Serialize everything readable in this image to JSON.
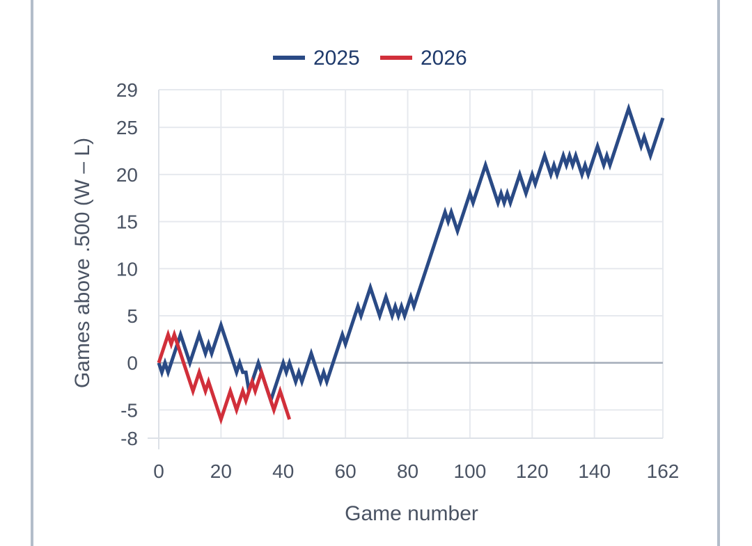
{
  "chart_data": {
    "type": "line",
    "title": "",
    "xlabel": "Game number",
    "ylabel": "Games above .500 (W – L)",
    "xlim": [
      0,
      162
    ],
    "ylim": [
      -8,
      29
    ],
    "xticks": [
      0,
      20,
      40,
      60,
      80,
      100,
      120,
      140,
      162
    ],
    "yticks": [
      -8,
      -5,
      0,
      5,
      10,
      15,
      20,
      25,
      29
    ],
    "grid": true,
    "legend_position": "top-center",
    "series": [
      {
        "name": "2025",
        "color": "#2a4a85",
        "x": [
          0,
          1,
          2,
          3,
          4,
          5,
          6,
          7,
          8,
          9,
          10,
          11,
          12,
          13,
          14,
          15,
          16,
          17,
          18,
          19,
          20,
          21,
          22,
          23,
          24,
          25,
          26,
          27,
          28,
          29,
          30,
          31,
          32,
          33,
          34,
          35,
          36,
          37,
          38,
          39,
          40,
          41,
          42,
          43,
          44,
          45,
          46,
          47,
          48,
          49,
          50,
          51,
          52,
          53,
          54,
          55,
          56,
          57,
          58,
          59,
          60,
          61,
          62,
          63,
          64,
          65,
          66,
          67,
          68,
          69,
          70,
          71,
          72,
          73,
          74,
          75,
          76,
          77,
          78,
          79,
          80,
          81,
          82,
          83,
          84,
          85,
          86,
          87,
          88,
          89,
          90,
          91,
          92,
          93,
          94,
          95,
          96,
          97,
          98,
          99,
          100,
          101,
          102,
          103,
          104,
          105,
          106,
          107,
          108,
          109,
          110,
          111,
          112,
          113,
          114,
          115,
          116,
          117,
          118,
          119,
          120,
          121,
          122,
          123,
          124,
          125,
          126,
          127,
          128,
          129,
          130,
          131,
          132,
          133,
          134,
          135,
          136,
          137,
          138,
          139,
          140,
          141,
          142,
          143,
          144,
          145,
          146,
          147,
          148,
          149,
          150,
          151,
          152,
          153,
          154,
          155,
          156,
          157,
          158,
          159,
          160,
          161,
          162
        ],
        "y": [
          0,
          -1,
          0,
          -1,
          0,
          1,
          2,
          3,
          2,
          1,
          0,
          1,
          2,
          3,
          2,
          1,
          2,
          1,
          2,
          3,
          4,
          3,
          2,
          1,
          0,
          -1,
          0,
          -1,
          -1,
          -3,
          -2,
          -1,
          0,
          -1,
          -2,
          -3,
          -4,
          -3,
          -2,
          -1,
          0,
          -1,
          0,
          -1,
          -2,
          -1,
          -2,
          -1,
          0,
          1,
          0,
          -1,
          -2,
          -1,
          -2,
          -1,
          0,
          1,
          2,
          3,
          2,
          3,
          4,
          5,
          6,
          5,
          6,
          7,
          8,
          7,
          6,
          5,
          6,
          7,
          6,
          5,
          6,
          5,
          6,
          5,
          6,
          7,
          6,
          7,
          8,
          9,
          10,
          11,
          12,
          13,
          14,
          15,
          16,
          15,
          16,
          15,
          14,
          15,
          16,
          17,
          18,
          17,
          18,
          19,
          20,
          21,
          20,
          19,
          18,
          17,
          18,
          17,
          18,
          17,
          18,
          19,
          20,
          19,
          18,
          19,
          20,
          19,
          20,
          21,
          22,
          21,
          20,
          21,
          20,
          21,
          22,
          21,
          22,
          21,
          22,
          21,
          20,
          21,
          20,
          21,
          22,
          23,
          22,
          21,
          22,
          21,
          22,
          23,
          24,
          25,
          26,
          27,
          26,
          25,
          24,
          23,
          24,
          23,
          22,
          23,
          24,
          25,
          26
        ]
      },
      {
        "name": "2026",
        "color": "#d12f3a",
        "x": [
          0,
          1,
          2,
          3,
          4,
          5,
          6,
          7,
          8,
          9,
          10,
          11,
          12,
          13,
          14,
          15,
          16,
          17,
          18,
          19,
          20,
          21,
          22,
          23,
          24,
          25,
          26,
          27,
          28,
          29,
          30,
          31,
          32,
          33,
          34,
          35,
          36,
          37,
          38,
          39,
          40,
          41,
          42
        ],
        "y": [
          0,
          1,
          2,
          3,
          2,
          3,
          2,
          1,
          0,
          -1,
          -2,
          -3,
          -2,
          -1,
          -2,
          -3,
          -2,
          -3,
          -4,
          -5,
          -6,
          -5,
          -4,
          -3,
          -4,
          -5,
          -4,
          -3,
          -4,
          -3,
          -2,
          -3,
          -2,
          -1,
          -2,
          -3,
          -4,
          -5,
          -4,
          -3,
          -4,
          -5,
          -6
        ]
      }
    ]
  }
}
